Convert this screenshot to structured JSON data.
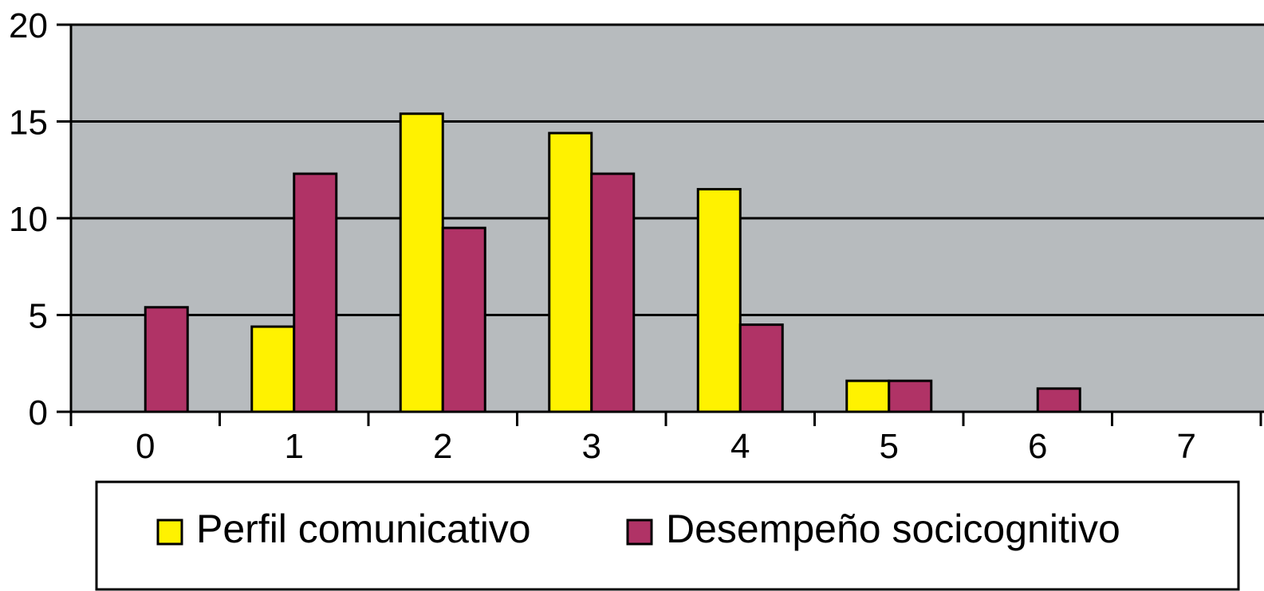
{
  "chart_data": {
    "type": "bar",
    "categories": [
      "0",
      "1",
      "2",
      "3",
      "4",
      "5",
      "6",
      "7"
    ],
    "series": [
      {
        "name": "Perfil comunicativo",
        "values": [
          0,
          4.4,
          15.4,
          14.4,
          11.5,
          1.6,
          0,
          0
        ],
        "color": "#FFF200"
      },
      {
        "name": "Desempeño socicognitivo",
        "values": [
          5.4,
          12.3,
          9.5,
          12.3,
          4.5,
          1.6,
          1.2,
          0
        ],
        "color": "#B03366"
      }
    ],
    "ylim": [
      0,
      20
    ],
    "yticks": [
      "0",
      "5",
      "10",
      "15",
      "20"
    ],
    "grid": true,
    "legend": "bottom",
    "plot_background": "#B7BBBE"
  }
}
